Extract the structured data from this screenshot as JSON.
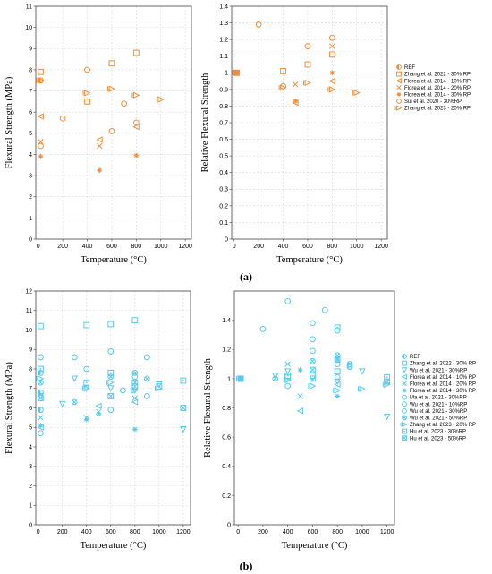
{
  "figure": {
    "label_a": "(a)",
    "label_b": "(b)"
  },
  "chart_data": [
    {
      "type": "scatter",
      "panel": "a-left",
      "xlabel": "Temperature (°C)",
      "ylabel": "Flexural Strength (MPa)",
      "xlim": [
        -20,
        1250
      ],
      "ylim": [
        0,
        11
      ],
      "xticks": [
        0,
        200,
        400,
        600,
        800,
        1000,
        1200
      ],
      "yticks": [
        0,
        1,
        2,
        3,
        4,
        5,
        6,
        7,
        8,
        9,
        10,
        11
      ],
      "grid": true,
      "color": "#ef8e3c",
      "series": [
        {
          "marker": "half-circle",
          "points": [
            [
              20,
              7.5
            ]
          ]
        },
        {
          "marker": "square",
          "points": [
            [
              20,
              7.9
            ],
            [
              400,
              6.5
            ],
            [
              600,
              8.3
            ],
            [
              800,
              8.8
            ]
          ]
        },
        {
          "marker": "tri-left",
          "points": [
            [
              20,
              5.8
            ],
            [
              500,
              4.7
            ],
            [
              800,
              5.3
            ]
          ]
        },
        {
          "marker": "x",
          "points": [
            [
              20,
              4.6
            ],
            [
              500,
              4.4
            ]
          ]
        },
        {
          "marker": "star",
          "points": [
            [
              20,
              3.9
            ],
            [
              500,
              3.25
            ],
            [
              800,
              3.95
            ]
          ]
        },
        {
          "marker": "circle",
          "points": [
            [
              20,
              4.4
            ],
            [
              200,
              5.7
            ],
            [
              400,
              8.0
            ],
            [
              600,
              5.1
            ],
            [
              700,
              6.4
            ],
            [
              800,
              5.5
            ]
          ]
        },
        {
          "marker": "tri-right-bar",
          "points": [
            [
              20,
              7.5
            ],
            [
              400,
              6.9
            ],
            [
              600,
              7.1
            ],
            [
              800,
              6.8
            ],
            [
              1000,
              6.6
            ]
          ]
        }
      ]
    },
    {
      "type": "scatter",
      "panel": "a-right",
      "xlabel": "Temperature (°C)",
      "ylabel": "Relative Flexural Strength",
      "xlim": [
        -20,
        1250
      ],
      "ylim": [
        0,
        1.4
      ],
      "xticks": [
        0,
        200,
        400,
        600,
        800,
        1000,
        1200
      ],
      "yticks": [
        0,
        0.1,
        0.2,
        0.3,
        0.4,
        0.5,
        0.6,
        0.7,
        0.8,
        0.9,
        1,
        1.1,
        1.2,
        1.3,
        1.4
      ],
      "ytick_labels": [
        "0",
        "0.1",
        "0.2",
        "0.3",
        "0.4",
        "0.5",
        "0.6",
        "0.7",
        "0.8",
        "0.9",
        "1",
        "1.1",
        "1.2",
        "1.3",
        "1.4"
      ],
      "grid": true,
      "color": "#ef8e3c",
      "legend_position": "right",
      "series": [
        {
          "name": "REF",
          "marker": "half-circle",
          "points": [
            [
              20,
              1.0
            ]
          ]
        },
        {
          "name": "Zhang et al. 2022 - 30% RP",
          "marker": "square",
          "points": [
            [
              20,
              1.0
            ],
            [
              400,
              1.01
            ],
            [
              600,
              1.05
            ],
            [
              800,
              1.11
            ]
          ]
        },
        {
          "name": "Florea et al. 2014 - 10% RP",
          "marker": "tri-left",
          "points": [
            [
              20,
              1.0
            ],
            [
              500,
              0.82
            ],
            [
              800,
              0.95
            ]
          ]
        },
        {
          "name": "Florea et al. 2014 - 20% RP",
          "marker": "x",
          "points": [
            [
              20,
              1.0
            ],
            [
              500,
              0.93
            ],
            [
              800,
              1.16
            ]
          ]
        },
        {
          "name": "Florea et al. 2014 - 30% RP",
          "marker": "star",
          "points": [
            [
              20,
              1.0
            ],
            [
              500,
              0.83
            ],
            [
              800,
              1.0
            ]
          ]
        },
        {
          "name": "Sui et al. 2020 - 30%RP",
          "marker": "circle",
          "points": [
            [
              20,
              1.0
            ],
            [
              200,
              1.29
            ],
            [
              400,
              0.92
            ],
            [
              600,
              1.16
            ],
            [
              800,
              1.21
            ]
          ]
        },
        {
          "name": "Zhang et al. 2023 - 20% RP",
          "marker": "tri-right-bar",
          "points": [
            [
              20,
              1.0
            ],
            [
              400,
              0.91
            ],
            [
              600,
              0.94
            ],
            [
              800,
              0.9
            ],
            [
              1000,
              0.88
            ]
          ]
        }
      ]
    },
    {
      "type": "scatter",
      "panel": "b-left",
      "xlabel": "Temperature (°C)",
      "ylabel": "Flexural Strength (MPa)",
      "xlim": [
        -20,
        1260
      ],
      "ylim": [
        0,
        12
      ],
      "xticks": [
        0,
        200,
        400,
        600,
        800,
        1000,
        1200
      ],
      "yticks": [
        0,
        1,
        2,
        3,
        4,
        5,
        6,
        7,
        8,
        9,
        10,
        11,
        12
      ],
      "grid": true,
      "color": "#5cc8e8",
      "series": [
        {
          "marker": "half-circle",
          "points": [
            [
              20,
              7.8
            ],
            [
              20,
              6.8
            ],
            [
              20,
              5.9
            ]
          ]
        },
        {
          "marker": "square",
          "points": [
            [
              20,
              10.2
            ],
            [
              400,
              10.25
            ],
            [
              600,
              10.3
            ],
            [
              800,
              10.5
            ]
          ]
        },
        {
          "marker": "tri-down",
          "points": [
            [
              20,
              6.6
            ],
            [
              200,
              6.2
            ],
            [
              300,
              7.5
            ],
            [
              400,
              7.0
            ],
            [
              600,
              7.0
            ],
            [
              800,
              6.9
            ],
            [
              1000,
              7.2
            ],
            [
              1200,
              4.9
            ]
          ]
        },
        {
          "marker": "tri-left",
          "points": [
            [
              20,
              5.0
            ],
            [
              500,
              6.1
            ],
            [
              800,
              6.3
            ]
          ]
        },
        {
          "marker": "x",
          "points": [
            [
              20,
              5.5
            ],
            [
              400,
              5.5
            ],
            [
              500,
              5.8
            ],
            [
              800,
              6.5
            ]
          ]
        },
        {
          "marker": "star",
          "points": [
            [
              20,
              5.1
            ],
            [
              400,
              5.4
            ],
            [
              500,
              5.7
            ],
            [
              800,
              4.9
            ]
          ]
        },
        {
          "marker": "circle",
          "points": [
            [
              20,
              8.6
            ],
            [
              300,
              8.6
            ],
            [
              400,
              8.0
            ],
            [
              600,
              8.9
            ],
            [
              800,
              7.6
            ],
            [
              900,
              8.6
            ],
            [
              20,
              4.7
            ],
            [
              600,
              5.9
            ],
            [
              700,
              6.9
            ],
            [
              900,
              6.6
            ]
          ]
        },
        {
          "marker": "circle-x",
          "points": [
            [
              20,
              7.3
            ],
            [
              300,
              6.3
            ],
            [
              600,
              7.6
            ],
            [
              800,
              7.8
            ],
            [
              900,
              7.5
            ]
          ]
        },
        {
          "marker": "square-dot",
          "points": [
            [
              20,
              8.0
            ],
            [
              400,
              7.3
            ],
            [
              600,
              7.8
            ],
            [
              800,
              7.1
            ],
            [
              1000,
              7.1
            ],
            [
              1200,
              7.4
            ]
          ]
        },
        {
          "marker": "tri-right-bar",
          "points": [
            [
              20,
              7.5
            ],
            [
              400,
              7.0
            ],
            [
              600,
              7.3
            ],
            [
              800,
              6.9
            ],
            [
              1000,
              7.0
            ]
          ]
        },
        {
          "marker": "square-x",
          "points": [
            [
              20,
              6.5
            ],
            [
              600,
              6.6
            ],
            [
              800,
              7.3
            ],
            [
              1200,
              6.0
            ]
          ]
        }
      ]
    },
    {
      "type": "scatter",
      "panel": "b-right",
      "xlabel": "Temperature (°C)",
      "ylabel": "Relative Flexural Strength",
      "xlim": [
        -30,
        1260
      ],
      "ylim": [
        0,
        1.6
      ],
      "xticks": [
        0,
        200,
        400,
        600,
        800,
        1000,
        1200
      ],
      "yticks": [
        0,
        0.2,
        0.4,
        0.6,
        0.8,
        1.0,
        1.2,
        1.4
      ],
      "ytick_labels": [
        "0",
        "0.2",
        "0.4",
        "0.6",
        "0.8",
        "1",
        "1.2",
        "1.4"
      ],
      "grid": false,
      "color": "#5cc8e8",
      "legend_position": "right",
      "series": [
        {
          "name": "REF",
          "marker": "half-circle",
          "points": [
            [
              20,
              1.0
            ]
          ]
        },
        {
          "name": "Zhang et al. 2022 - 30% RP",
          "marker": "square",
          "points": [
            [
              20,
              1.0
            ],
            [
              400,
              1.01
            ],
            [
              600,
              1.02
            ],
            [
              800,
              1.05
            ]
          ]
        },
        {
          "name": "Wu et al. 2021 - 30%RP",
          "marker": "tri-down",
          "points": [
            [
              20,
              1.0
            ],
            [
              300,
              1.02
            ],
            [
              400,
              1.05
            ],
            [
              600,
              1.0
            ],
            [
              800,
              0.98
            ],
            [
              1000,
              1.05
            ],
            [
              1200,
              0.74
            ]
          ]
        },
        {
          "name": "Florea et al. 2014 - 10% RP",
          "marker": "tri-left",
          "points": [
            [
              20,
              1.0
            ],
            [
              500,
              0.78
            ],
            [
              800,
              0.96
            ]
          ]
        },
        {
          "name": "Florea et al. 2014 - 20% RP",
          "marker": "x",
          "points": [
            [
              20,
              1.0
            ],
            [
              400,
              1.1
            ],
            [
              500,
              0.88
            ],
            [
              800,
              1.14
            ]
          ]
        },
        {
          "name": "Florea et al. 2014 - 30% RP",
          "marker": "star",
          "points": [
            [
              20,
              1.0
            ],
            [
              500,
              1.06
            ],
            [
              800,
              0.88
            ]
          ]
        },
        {
          "name": "Ma et al. 2021 - 30%RP",
          "marker": "circle",
          "points": [
            [
              20,
              1.0
            ],
            [
              200,
              1.34
            ],
            [
              400,
              1.53
            ],
            [
              600,
              1.38
            ],
            [
              700,
              1.47
            ],
            [
              800,
              1.33
            ]
          ]
        },
        {
          "name": "Wu et al. 2021 - 10%RP",
          "marker": "circle",
          "points": [
            [
              20,
              1.0
            ],
            [
              400,
              0.95
            ],
            [
              600,
              1.27
            ],
            [
              800,
              1.1
            ],
            [
              900,
              1.08
            ]
          ]
        },
        {
          "name": "Wu et al. 2021 - 30%RP",
          "marker": "circle",
          "points": [
            [
              20,
              1.0
            ],
            [
              600,
              1.19
            ],
            [
              800,
              1.01
            ],
            [
              900,
              1.09
            ]
          ]
        },
        {
          "name": "Wu et al. 2021 - 50%RP",
          "marker": "circle-x",
          "points": [
            [
              20,
              1.0
            ],
            [
              300,
              1.0
            ],
            [
              600,
              1.12
            ],
            [
              800,
              1.16
            ],
            [
              900,
              1.1
            ]
          ]
        },
        {
          "name": "Zhang et al. 2023 - 20% RP",
          "marker": "tri-right-bar",
          "points": [
            [
              20,
              1.0
            ],
            [
              400,
              0.99
            ],
            [
              600,
              0.95
            ],
            [
              800,
              0.92
            ],
            [
              1000,
              0.93
            ],
            [
              1200,
              0.96
            ]
          ]
        },
        {
          "name": "Hu et al. 2023 - 30%RP",
          "marker": "square-dot",
          "points": [
            [
              20,
              1.0
            ],
            [
              400,
              1.02
            ],
            [
              600,
              1.0
            ],
            [
              800,
              1.35
            ],
            [
              1200,
              1.01
            ]
          ]
        },
        {
          "name": "Hu et al. 2023 - 50%RP",
          "marker": "square-x",
          "points": [
            [
              20,
              1.0
            ],
            [
              600,
              1.06
            ],
            [
              800,
              1.13
            ],
            [
              1200,
              0.98
            ]
          ]
        }
      ]
    }
  ]
}
